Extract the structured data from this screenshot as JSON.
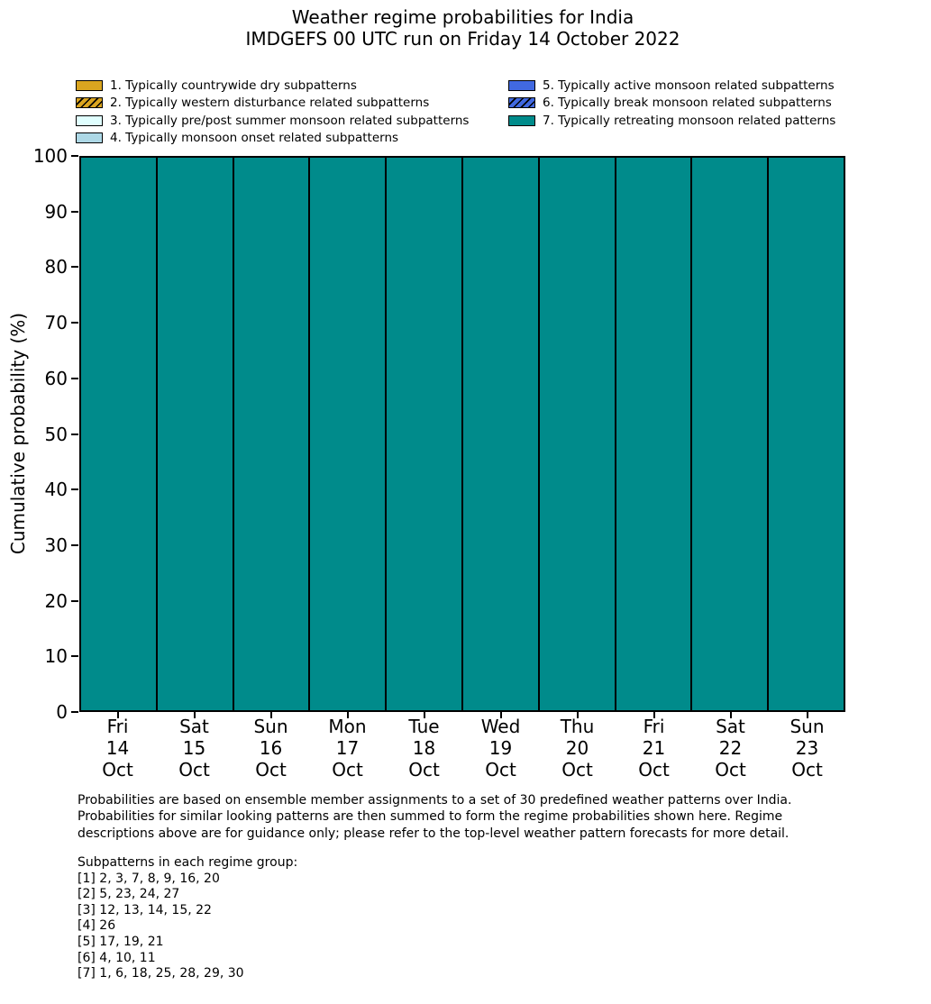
{
  "title": {
    "line1": "Weather regime probabilities for India",
    "line2": "IMDGEFS 00 UTC run on Friday 14 October 2022"
  },
  "legend": {
    "position": "top, two columns",
    "items": [
      {
        "label": "1. Typically countrywide dry subpatterns",
        "color": "#DAA520",
        "hatch": false
      },
      {
        "label": "2. Typically western disturbance related subpatterns",
        "color": "#DAA520",
        "hatch": true
      },
      {
        "label": "3. Typically pre/post summer monsoon related subpatterns",
        "color": "#E0FFFF",
        "hatch": false
      },
      {
        "label": "4. Typically monsoon onset related subpatterns",
        "color": "#ADD8E6",
        "hatch": false
      },
      {
        "label": "5. Typically active monsoon related subpatterns",
        "color": "#4169E1",
        "hatch": false
      },
      {
        "label": "6. Typically break monsoon related subpatterns",
        "color": "#4169E1",
        "hatch": true
      },
      {
        "label": "7. Typically retreating monsoon related patterns",
        "color": "#008B8B",
        "hatch": false
      }
    ]
  },
  "chart_data": {
    "type": "bar",
    "stacked": true,
    "title": "Weather regime probabilities for India — IMDGEFS 00 UTC run on Friday 14 October 2022",
    "xlabel": "",
    "ylabel": "Cumulative probability (%)",
    "ylim": [
      0,
      100
    ],
    "yticks": [
      0,
      10,
      20,
      30,
      40,
      50,
      60,
      70,
      80,
      90,
      100
    ],
    "grid": false,
    "bar_edge_color": "#000000",
    "bar_width": 1.0,
    "categories": [
      {
        "day": "Fri",
        "date": "14",
        "month": "Oct"
      },
      {
        "day": "Sat",
        "date": "15",
        "month": "Oct"
      },
      {
        "day": "Sun",
        "date": "16",
        "month": "Oct"
      },
      {
        "day": "Mon",
        "date": "17",
        "month": "Oct"
      },
      {
        "day": "Tue",
        "date": "18",
        "month": "Oct"
      },
      {
        "day": "Wed",
        "date": "19",
        "month": "Oct"
      },
      {
        "day": "Thu",
        "date": "20",
        "month": "Oct"
      },
      {
        "day": "Fri",
        "date": "21",
        "month": "Oct"
      },
      {
        "day": "Sat",
        "date": "22",
        "month": "Oct"
      },
      {
        "day": "Sun",
        "date": "23",
        "month": "Oct"
      }
    ],
    "series": [
      {
        "regime": 1,
        "name": "Typically countrywide dry subpatterns",
        "color": "#DAA520",
        "hatch": false,
        "values": [
          0,
          0,
          0,
          0,
          0,
          0,
          0,
          0,
          0,
          0
        ]
      },
      {
        "regime": 2,
        "name": "Typically western disturbance related subpatterns",
        "color": "#DAA520",
        "hatch": true,
        "values": [
          0,
          0,
          0,
          0,
          0,
          0,
          0,
          0,
          0,
          0
        ]
      },
      {
        "regime": 3,
        "name": "Typically pre/post summer monsoon related subpatterns",
        "color": "#E0FFFF",
        "hatch": false,
        "values": [
          0,
          0,
          0,
          0,
          0,
          0,
          0,
          0,
          0,
          0
        ]
      },
      {
        "regime": 4,
        "name": "Typically monsoon onset related subpatterns",
        "color": "#ADD8E6",
        "hatch": false,
        "values": [
          0,
          0,
          0,
          0,
          0,
          0,
          0,
          0,
          0,
          0
        ]
      },
      {
        "regime": 5,
        "name": "Typically active monsoon related subpatterns",
        "color": "#4169E1",
        "hatch": false,
        "values": [
          0,
          0,
          0,
          0,
          0,
          0,
          0,
          0,
          0,
          0
        ]
      },
      {
        "regime": 6,
        "name": "Typically break monsoon related subpatterns",
        "color": "#4169E1",
        "hatch": true,
        "values": [
          0,
          0,
          0,
          0,
          0,
          0,
          0,
          0,
          0,
          0
        ]
      },
      {
        "regime": 7,
        "name": "Typically retreating monsoon related patterns",
        "color": "#008B8B",
        "hatch": false,
        "values": [
          100,
          100,
          100,
          100,
          100,
          100,
          100,
          100,
          100,
          100
        ]
      }
    ]
  },
  "footnote": {
    "lines": [
      "Probabilities are based on ensemble member assignments to a set of 30 predefined weather patterns over India.",
      "Probabilities for similar looking patterns are then summed to form the regime probabilities shown here. Regime",
      "descriptions above are for guidance only; please refer to the top-level weather pattern forecasts for more detail."
    ]
  },
  "subpatterns": {
    "heading": "Subpatterns in each regime group:",
    "lines": [
      "[1] 2, 3, 7, 8, 9, 16, 20",
      "[2] 5, 23, 24, 27",
      "[3] 12, 13, 14, 15, 22",
      "[4] 26",
      "[5] 17, 19, 21",
      "[6] 4, 10, 11",
      "[7] 1, 6, 18, 25, 28, 29, 30"
    ]
  }
}
